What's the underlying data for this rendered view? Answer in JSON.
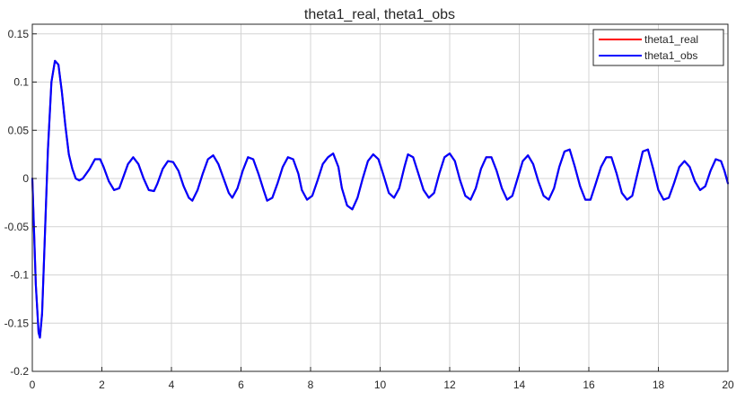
{
  "chart_data": {
    "type": "line",
    "title": "theta1_real, theta1_obs",
    "xlabel": "",
    "ylabel": "",
    "xlim": [
      0,
      20
    ],
    "ylim": [
      -0.2,
      0.16
    ],
    "grid": true,
    "legend_position": "top-right",
    "x_ticks": [
      0,
      2,
      4,
      6,
      8,
      10,
      12,
      14,
      16,
      18,
      20
    ],
    "x_tick_labels": [
      "0",
      "2",
      "4",
      "6",
      "8",
      "10",
      "12",
      "14",
      "16",
      "18",
      "20"
    ],
    "y_ticks": [
      -0.2,
      -0.15,
      -0.1,
      -0.05,
      0,
      0.05,
      0.1,
      0.15
    ],
    "y_tick_labels": [
      "-0.2",
      "-0.15",
      "-0.1",
      "-0.05",
      "0",
      "0.05",
      "0.1",
      "0.15"
    ],
    "series": [
      {
        "name": "theta1_real",
        "color": "#ff0000",
        "x": [
          0,
          0.1,
          0.18,
          0.22,
          0.28,
          0.35,
          0.45,
          0.55,
          0.65,
          0.75,
          0.85,
          0.95,
          1.05,
          1.15,
          1.25,
          1.35,
          1.45,
          1.55,
          1.65,
          1.8,
          1.95,
          2.05,
          2.2,
          2.35,
          2.5,
          2.6,
          2.75,
          2.9,
          3.05,
          3.2,
          3.35,
          3.5,
          3.6,
          3.75,
          3.9,
          4.05,
          4.2,
          4.35,
          4.5,
          4.6,
          4.75,
          4.9,
          5.05,
          5.2,
          5.35,
          5.5,
          5.65,
          5.75,
          5.9,
          6.05,
          6.2,
          6.35,
          6.5,
          6.65,
          6.75,
          6.9,
          7.05,
          7.2,
          7.35,
          7.5,
          7.65,
          7.75,
          7.9,
          8.05,
          8.2,
          8.35,
          8.5,
          8.65,
          8.8,
          8.9,
          9.05,
          9.2,
          9.35,
          9.5,
          9.65,
          9.8,
          9.95,
          10.1,
          10.25,
          10.4,
          10.55,
          10.7,
          10.8,
          10.95,
          11.1,
          11.25,
          11.4,
          11.55,
          11.7,
          11.85,
          12.0,
          12.15,
          12.3,
          12.45,
          12.6,
          12.75,
          12.9,
          13.05,
          13.2,
          13.35,
          13.5,
          13.65,
          13.8,
          13.95,
          14.1,
          14.25,
          14.4,
          14.55,
          14.7,
          14.85,
          15.0,
          15.15,
          15.3,
          15.45,
          15.6,
          15.75,
          15.9,
          16.05,
          16.2,
          16.35,
          16.5,
          16.65,
          16.8,
          16.95,
          17.1,
          17.25,
          17.4,
          17.55,
          17.7,
          17.85,
          18.0,
          18.15,
          18.3,
          18.45,
          18.6,
          18.75,
          18.9,
          19.05,
          19.2,
          19.35,
          19.5,
          19.65,
          19.8,
          19.9,
          20.0
        ],
        "y": [
          0,
          -0.11,
          -0.16,
          -0.165,
          -0.14,
          -0.07,
          0.03,
          0.1,
          0.122,
          0.118,
          0.09,
          0.055,
          0.025,
          0.01,
          0.0,
          -0.002,
          0.0,
          0.005,
          0.01,
          0.02,
          0.02,
          0.012,
          -0.003,
          -0.012,
          -0.01,
          0.0,
          0.015,
          0.022,
          0.015,
          0.0,
          -0.012,
          -0.013,
          -0.005,
          0.01,
          0.018,
          0.017,
          0.008,
          -0.008,
          -0.02,
          -0.023,
          -0.012,
          0.005,
          0.02,
          0.024,
          0.015,
          0.0,
          -0.015,
          -0.02,
          -0.01,
          0.008,
          0.022,
          0.02,
          0.005,
          -0.012,
          -0.023,
          -0.02,
          -0.005,
          0.012,
          0.022,
          0.02,
          0.005,
          -0.012,
          -0.022,
          -0.018,
          -0.002,
          0.015,
          0.022,
          0.026,
          0.012,
          -0.01,
          -0.028,
          -0.032,
          -0.02,
          0.0,
          0.018,
          0.025,
          0.02,
          0.003,
          -0.015,
          -0.02,
          -0.01,
          0.012,
          0.025,
          0.022,
          0.005,
          -0.012,
          -0.02,
          -0.015,
          0.005,
          0.022,
          0.026,
          0.018,
          -0.002,
          -0.018,
          -0.022,
          -0.01,
          0.01,
          0.022,
          0.022,
          0.008,
          -0.01,
          -0.022,
          -0.018,
          0.0,
          0.018,
          0.024,
          0.015,
          -0.003,
          -0.018,
          -0.022,
          -0.01,
          0.012,
          0.028,
          0.03,
          0.012,
          -0.008,
          -0.022,
          -0.022,
          -0.005,
          0.012,
          0.022,
          0.022,
          0.005,
          -0.015,
          -0.022,
          -0.018,
          0.005,
          0.028,
          0.03,
          0.01,
          -0.012,
          -0.022,
          -0.02,
          -0.005,
          0.012,
          0.018,
          0.012,
          -0.003,
          -0.012,
          -0.008,
          0.008,
          0.02,
          0.018,
          0.008,
          -0.005
        ]
      },
      {
        "name": "theta1_obs",
        "color": "#0000ff",
        "x": [
          0,
          0.1,
          0.18,
          0.22,
          0.28,
          0.35,
          0.45,
          0.55,
          0.65,
          0.75,
          0.85,
          0.95,
          1.05,
          1.15,
          1.25,
          1.35,
          1.45,
          1.55,
          1.65,
          1.8,
          1.95,
          2.05,
          2.2,
          2.35,
          2.5,
          2.6,
          2.75,
          2.9,
          3.05,
          3.2,
          3.35,
          3.5,
          3.6,
          3.75,
          3.9,
          4.05,
          4.2,
          4.35,
          4.5,
          4.6,
          4.75,
          4.9,
          5.05,
          5.2,
          5.35,
          5.5,
          5.65,
          5.75,
          5.9,
          6.05,
          6.2,
          6.35,
          6.5,
          6.65,
          6.75,
          6.9,
          7.05,
          7.2,
          7.35,
          7.5,
          7.65,
          7.75,
          7.9,
          8.05,
          8.2,
          8.35,
          8.5,
          8.65,
          8.8,
          8.9,
          9.05,
          9.2,
          9.35,
          9.5,
          9.65,
          9.8,
          9.95,
          10.1,
          10.25,
          10.4,
          10.55,
          10.7,
          10.8,
          10.95,
          11.1,
          11.25,
          11.4,
          11.55,
          11.7,
          11.85,
          12.0,
          12.15,
          12.3,
          12.45,
          12.6,
          12.75,
          12.9,
          13.05,
          13.2,
          13.35,
          13.5,
          13.65,
          13.8,
          13.95,
          14.1,
          14.25,
          14.4,
          14.55,
          14.7,
          14.85,
          15.0,
          15.15,
          15.3,
          15.45,
          15.6,
          15.75,
          15.9,
          16.05,
          16.2,
          16.35,
          16.5,
          16.65,
          16.8,
          16.95,
          17.1,
          17.25,
          17.4,
          17.55,
          17.7,
          17.85,
          18.0,
          18.15,
          18.3,
          18.45,
          18.6,
          18.75,
          18.9,
          19.05,
          19.2,
          19.35,
          19.5,
          19.65,
          19.8,
          19.9,
          20.0
        ],
        "y": [
          0,
          -0.11,
          -0.16,
          -0.165,
          -0.14,
          -0.07,
          0.03,
          0.1,
          0.122,
          0.118,
          0.09,
          0.055,
          0.025,
          0.01,
          0.0,
          -0.002,
          0.0,
          0.005,
          0.01,
          0.02,
          0.02,
          0.012,
          -0.003,
          -0.012,
          -0.01,
          0.0,
          0.015,
          0.022,
          0.015,
          0.0,
          -0.012,
          -0.013,
          -0.005,
          0.01,
          0.018,
          0.017,
          0.008,
          -0.008,
          -0.02,
          -0.023,
          -0.012,
          0.005,
          0.02,
          0.024,
          0.015,
          0.0,
          -0.015,
          -0.02,
          -0.01,
          0.008,
          0.022,
          0.02,
          0.005,
          -0.012,
          -0.023,
          -0.02,
          -0.005,
          0.012,
          0.022,
          0.02,
          0.005,
          -0.012,
          -0.022,
          -0.018,
          -0.002,
          0.015,
          0.022,
          0.026,
          0.012,
          -0.01,
          -0.028,
          -0.032,
          -0.02,
          0.0,
          0.018,
          0.025,
          0.02,
          0.003,
          -0.015,
          -0.02,
          -0.01,
          0.012,
          0.025,
          0.022,
          0.005,
          -0.012,
          -0.02,
          -0.015,
          0.005,
          0.022,
          0.026,
          0.018,
          -0.002,
          -0.018,
          -0.022,
          -0.01,
          0.01,
          0.022,
          0.022,
          0.008,
          -0.01,
          -0.022,
          -0.018,
          0.0,
          0.018,
          0.024,
          0.015,
          -0.003,
          -0.018,
          -0.022,
          -0.01,
          0.012,
          0.028,
          0.03,
          0.012,
          -0.008,
          -0.022,
          -0.022,
          -0.005,
          0.012,
          0.022,
          0.022,
          0.005,
          -0.015,
          -0.022,
          -0.018,
          0.005,
          0.028,
          0.03,
          0.01,
          -0.012,
          -0.022,
          -0.02,
          -0.005,
          0.012,
          0.018,
          0.012,
          -0.003,
          -0.012,
          -0.008,
          0.008,
          0.02,
          0.018,
          0.008,
          -0.005
        ]
      }
    ]
  }
}
